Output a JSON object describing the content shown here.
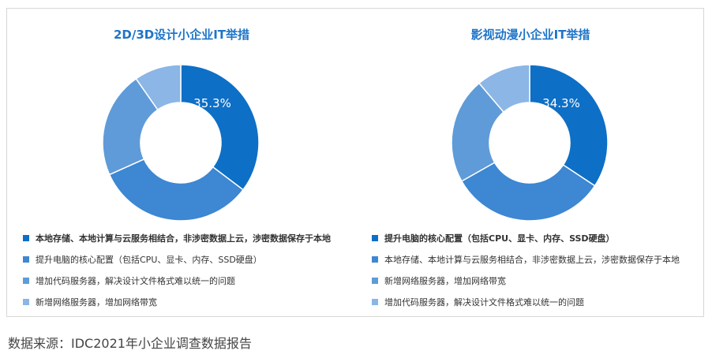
{
  "chart_data": [
    {
      "type": "pie",
      "title": "2D/3D设计小企业IT举措",
      "categories": [
        "本地存储、本地计算与云服务相结合，非涉密数据上云，涉密数据保存于本地",
        "提升电脑的核心配置（包括CPU、显卡、内存、SSD硬盘）",
        "增加代码服务器，解决设计文件格式难以统一的问题",
        "新增网络服务器，增加网络带宽"
      ],
      "values": [
        35.3,
        33.0,
        22.0,
        9.7
      ],
      "colors": [
        "#0e6fc6",
        "#3d87d3",
        "#5f9bd8",
        "#8bb6e6"
      ],
      "data_labels": [
        "35.3%"
      ]
    },
    {
      "type": "pie",
      "title": "影视动漫小企业IT举措",
      "categories": [
        "提升电脑的核心配置（包括CPU、显卡、内存、SSD硬盘）",
        "本地存储、本地计算与云服务相结合，非涉密数据上云，涉密数据保存于本地",
        "新增网络服务器，增加网络带宽",
        "增加代码服务器，解决设计文件格式难以统一的问题"
      ],
      "values": [
        34.3,
        32.5,
        22.0,
        11.2
      ],
      "colors": [
        "#0e6fc6",
        "#3d87d3",
        "#5f9bd8",
        "#8bb6e6"
      ],
      "data_labels": [
        "34.3%"
      ]
    }
  ],
  "source": "数据来源：IDC2021年小企业调查数据报告"
}
